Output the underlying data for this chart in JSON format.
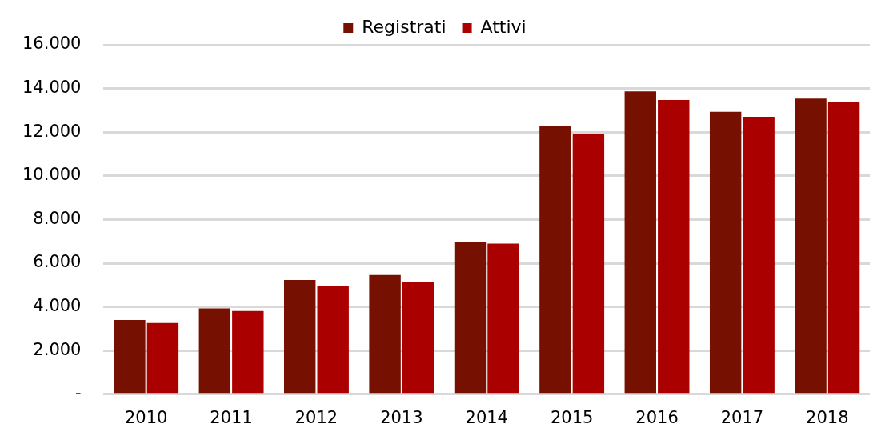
{
  "chart_data": {
    "type": "bar",
    "categories": [
      "2010",
      "2011",
      "2012",
      "2013",
      "2014",
      "2015",
      "2016",
      "2017",
      "2018"
    ],
    "series": [
      {
        "name": "Registrati",
        "color": "#761000",
        "values": [
          3400,
          3930,
          5230,
          5460,
          6990,
          12270,
          13870,
          12930,
          13540
        ]
      },
      {
        "name": "Attivi",
        "color": "#ab0000",
        "values": [
          3260,
          3810,
          4940,
          5130,
          6900,
          11910,
          13470,
          12700,
          13380
        ]
      }
    ],
    "ylim": [
      0,
      16000
    ],
    "yticks": [
      {
        "value": 0,
        "label": "-"
      },
      {
        "value": 2000,
        "label": "2.000"
      },
      {
        "value": 4000,
        "label": "4.000"
      },
      {
        "value": 6000,
        "label": "6.000"
      },
      {
        "value": 8000,
        "label": "8.000"
      },
      {
        "value": 10000,
        "label": "10.000"
      },
      {
        "value": 12000,
        "label": "12.000"
      },
      {
        "value": 14000,
        "label": "14.000"
      },
      {
        "value": 16000,
        "label": "16.000"
      }
    ],
    "grid": "y",
    "legend": "top"
  }
}
